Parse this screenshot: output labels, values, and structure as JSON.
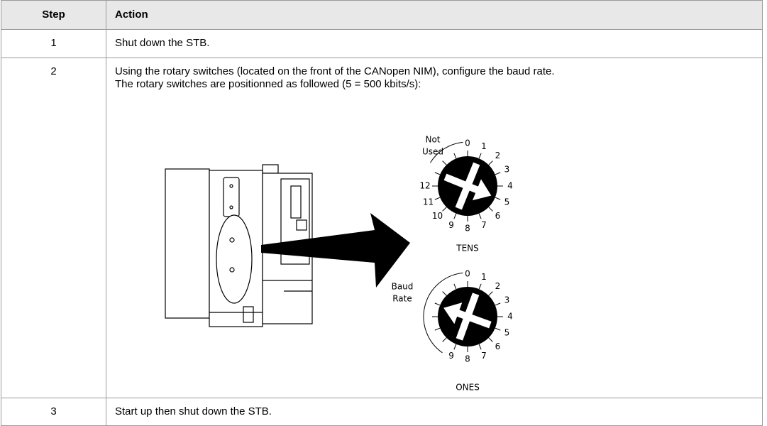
{
  "table": {
    "header": [
      "Step",
      "Action"
    ],
    "rows": [
      {
        "step": "1",
        "action": [
          "Shut down the STB."
        ]
      },
      {
        "step": "2",
        "action": [
          "Using the rotary switches (located on the front of the CANopen NIM), configure the baud rate.",
          "The rotary switches are positionned as followed (5 = 500 kbits/s):"
        ]
      },
      {
        "step": "3",
        "action": [
          "Start up then shut down the STB."
        ]
      }
    ]
  },
  "figure": {
    "tens_dial": {
      "range_label": [
        "Not",
        "Used"
      ],
      "positions": [
        "0",
        "1",
        "2",
        "3",
        "4",
        "5",
        "6",
        "7",
        "8",
        "9",
        "10",
        "11",
        "12"
      ],
      "caption": "TENS"
    },
    "ones_dial": {
      "range_label": [
        "Baud",
        "Rate"
      ],
      "positions": [
        "0",
        "1",
        "2",
        "3",
        "4",
        "5",
        "6",
        "7",
        "8",
        "9"
      ],
      "caption": "ONES"
    }
  }
}
